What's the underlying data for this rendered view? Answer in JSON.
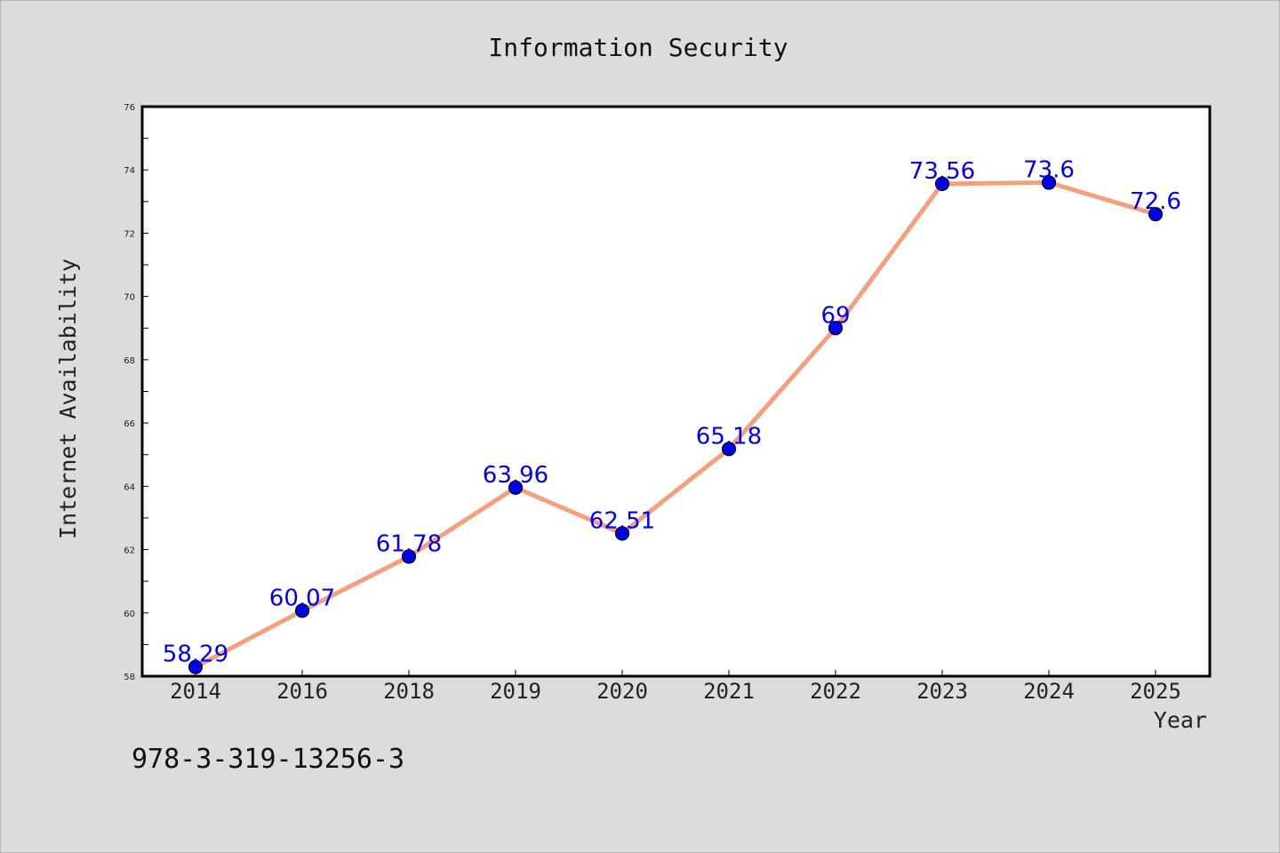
{
  "chart_data": {
    "type": "line",
    "title": "Information Security",
    "xlabel": "Year",
    "ylabel": "Internet Availability",
    "categories": [
      "2014",
      "2016",
      "2018",
      "2019",
      "2020",
      "2021",
      "2022",
      "2023",
      "2024",
      "2025"
    ],
    "series": [
      {
        "values": [
          58.29,
          60.07,
          61.78,
          63.96,
          62.51,
          65.18,
          69,
          73.56,
          73.6,
          72.6
        ],
        "data_labels": [
          "58.29",
          "60.07",
          "61.78",
          "63.96",
          "62.51",
          "65.18",
          "69",
          "73.56",
          "73.6",
          "72.6"
        ],
        "line_color": "#f4a07f",
        "marker_color": "#0000ee"
      }
    ],
    "ylim": [
      58,
      76
    ],
    "yticks": [
      "58",
      "60",
      "62",
      "64",
      "66",
      "68",
      "70",
      "72",
      "74",
      "76"
    ],
    "grid": false,
    "legend": "none"
  },
  "footer_text": "978-3-319-13256-3",
  "colors": {
    "background": "#dcdcdc",
    "plot_background": "#ffffff",
    "line": "#f4a07f",
    "marker": "#0000ee",
    "data_label": "#0000ee"
  }
}
